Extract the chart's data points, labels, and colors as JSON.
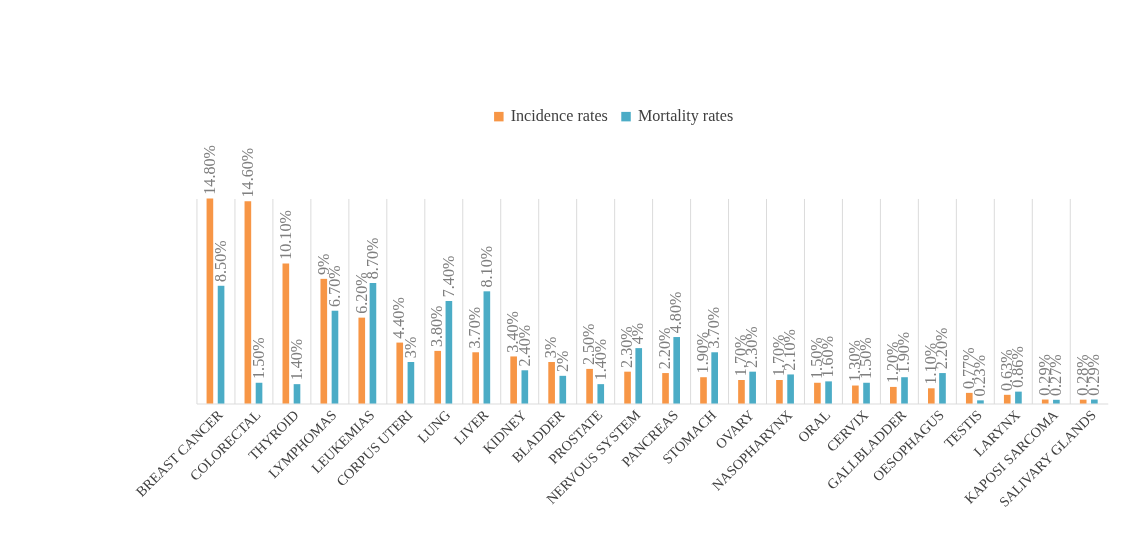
{
  "chart_data": {
    "type": "bar",
    "categories": [
      "BREAST CANCER",
      "COLORECTAL",
      "THYROID",
      "LYMPHOMAS",
      "LEUKEMIAS",
      "CORPUS UTERI",
      "LUNG",
      "LIVER",
      "KIDNEY",
      "BLADDER",
      "PROSTATE",
      "NERVOUS SYSTEM",
      "PANCREAS",
      "STOMACH",
      "OVARY",
      "NASOPHARYNX",
      "ORAL",
      "CERVIX",
      "GALLBLADDER",
      "OESOPHAGUS",
      "TESTIS",
      "LARYNX",
      "KAPOSI SARCOMA",
      "SALIVARY GLANDS"
    ],
    "series": [
      {
        "name": "Incidence rates",
        "color": "#f79646",
        "values": [
          14.8,
          14.6,
          10.1,
          9,
          6.2,
          4.4,
          3.8,
          3.7,
          3.4,
          3,
          2.5,
          2.3,
          2.2,
          1.9,
          1.7,
          1.7,
          1.5,
          1.3,
          1.2,
          1.1,
          0.77,
          0.63,
          0.29,
          0.28
        ],
        "value_labels": [
          "14.80%",
          "14.60%",
          "10.10%",
          "9%",
          "6.20%",
          "4.40%",
          "3.80%",
          "3.70%",
          "3.40%",
          "3%",
          "2.50%",
          "2.30%",
          "2.20%",
          "1.90%",
          "1.70%",
          "1.70%",
          "1.50%",
          "1.30%",
          "1.20%",
          "1.10%",
          "0.77%",
          "0.63%",
          "0.29%",
          "0.28%"
        ]
      },
      {
        "name": "Mortality rates",
        "color": "#4bacc6",
        "values": [
          8.5,
          1.5,
          1.4,
          6.7,
          8.7,
          3,
          7.4,
          8.1,
          2.4,
          2,
          1.4,
          4,
          4.8,
          3.7,
          2.3,
          2.1,
          1.6,
          1.5,
          1.9,
          2.2,
          0.23,
          0.86,
          0.27,
          0.29
        ],
        "value_labels": [
          "8.50%",
          "1.50%",
          "1.40%",
          "6.70%",
          "8.70%",
          "3%",
          "7.40%",
          "8.10%",
          "2.40%",
          "2%",
          "1.40%",
          "4%",
          "4.80%",
          "3.70%",
          "2.30%",
          "2.10%",
          "1.60%",
          "1.50%",
          "1.90%",
          "2.20%",
          "0.23%",
          "0.86%",
          "0.27%",
          "0.29%"
        ]
      }
    ],
    "grid": "x",
    "legend": "top"
  }
}
